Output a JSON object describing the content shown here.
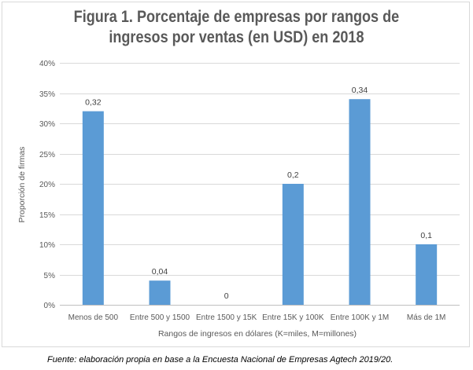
{
  "chart_data": {
    "type": "bar",
    "title_lines": [
      "Figura 1. Porcentaje de empresas por rangos de",
      "ingresos por ventas (en USD) en 2018"
    ],
    "categories": [
      "Menos de 500",
      "Entre 500 y 1500",
      "Entre 1500 y 15K",
      "Entre 15K  y 100K",
      "Entre 100K y 1M",
      "Más de 1M"
    ],
    "values": [
      0.32,
      0.04,
      0,
      0.2,
      0.34,
      0.1
    ],
    "data_labels": [
      "0,32",
      "0,04",
      "0",
      "0,2",
      "0,34",
      "0,1"
    ],
    "ylabel": "Proporción de firmas",
    "xlabel": "Rangos de ingresos en dólares (K=miles, M=millones)",
    "ylim": [
      0,
      0.4
    ],
    "yticks": [
      0,
      0.05,
      0.1,
      0.15,
      0.2,
      0.25,
      0.3,
      0.35,
      0.4
    ],
    "ytick_labels": [
      "0%",
      "5%",
      "10%",
      "15%",
      "20%",
      "25%",
      "30%",
      "35%",
      "40%"
    ],
    "grid": true,
    "bar_color": "#5b9bd5"
  },
  "source": "Fuente: elaboración propia en base a la Encuesta Nacional de Empresas Agtech 2019/20."
}
